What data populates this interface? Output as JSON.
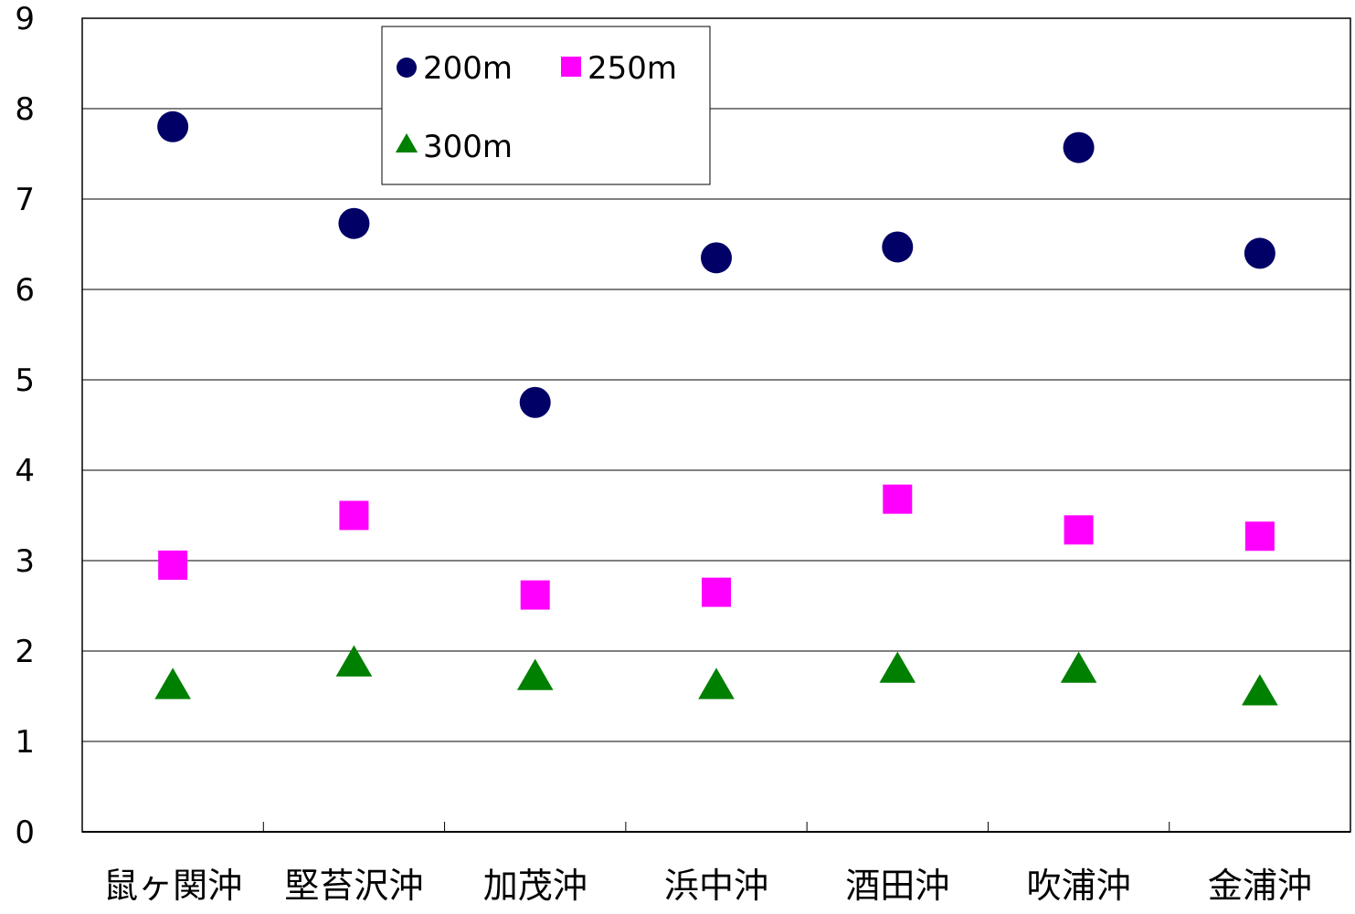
{
  "chart_data": {
    "type": "scatter",
    "categories": [
      "鼠ヶ関沖",
      "堅苔沢沖",
      "加茂沖",
      "浜中沖",
      "酒田沖",
      "吹浦沖",
      "金浦沖"
    ],
    "series": [
      {
        "name": "200m",
        "marker": "circle",
        "color": "#000066",
        "values": [
          7.8,
          6.73,
          4.75,
          6.35,
          6.47,
          7.57,
          6.4
        ]
      },
      {
        "name": "250m",
        "marker": "square",
        "color": "#ff00ff",
        "values": [
          2.95,
          3.5,
          2.62,
          2.65,
          3.68,
          3.34,
          3.27
        ]
      },
      {
        "name": "300m",
        "marker": "triangle",
        "color": "#008000",
        "values": [
          1.6,
          1.85,
          1.7,
          1.6,
          1.78,
          1.78,
          1.53
        ]
      }
    ],
    "ylim": [
      0,
      9
    ],
    "yticks": [
      "0",
      "1",
      "2",
      "3",
      "4",
      "5",
      "6",
      "7",
      "8",
      "9"
    ],
    "grid": true,
    "legend": "top-left",
    "title": "",
    "xlabel": "",
    "ylabel": ""
  }
}
